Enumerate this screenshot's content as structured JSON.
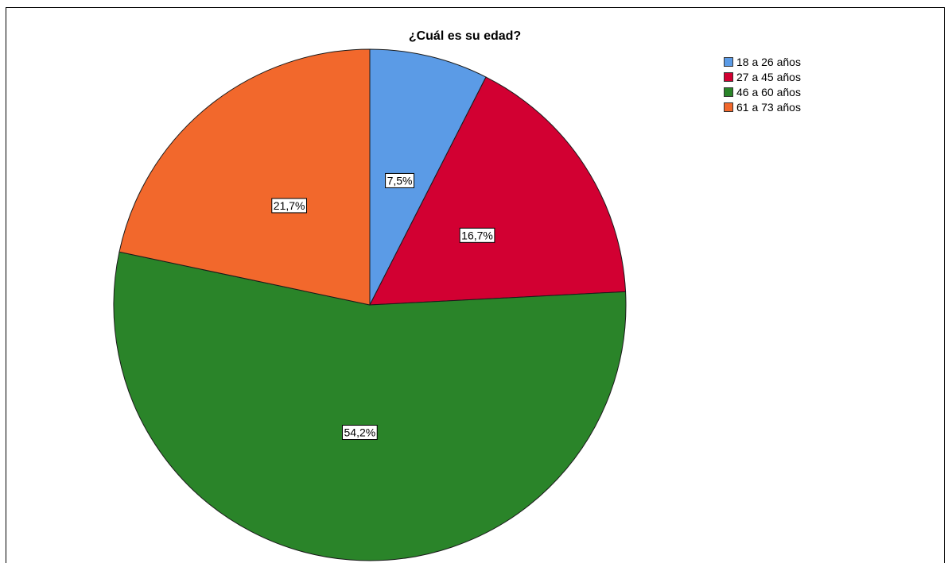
{
  "chart_data": {
    "type": "pie",
    "title": "¿Cuál es su edad?",
    "categories": [
      "18 a 26 años",
      "27 a 45 años",
      "46 a 60 años",
      "61 a 73 años"
    ],
    "values": [
      7.5,
      16.7,
      54.2,
      21.7
    ],
    "data_labels": [
      "7,5%",
      "16,7%",
      "54,2%",
      "21,7%"
    ],
    "colors": [
      "#5b9be6",
      "#d20032",
      "#2a8429",
      "#f2682c"
    ],
    "legend_position": "top-right",
    "start_angle": "12 o'clock",
    "direction": "clockwise"
  }
}
